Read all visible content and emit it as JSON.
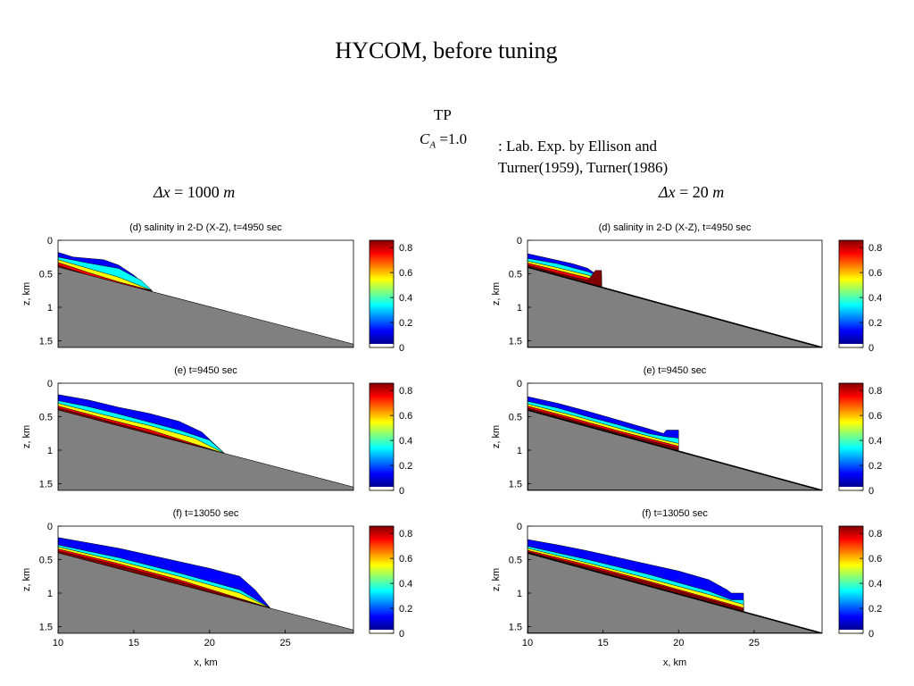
{
  "slide": {
    "title": "HYCOM, before tuning",
    "tp_label": "TP",
    "ca_symbol": "C",
    "ca_subscript": "A",
    "ca_value": " =1.0",
    "lab_reference": ": Lab. Exp. by Ellison and\nTurner(1959), Turner(1986)",
    "dx_left_symbol": "Δx",
    "dx_left_value": " = 1000 ",
    "dx_left_unit": "m",
    "dx_right_symbol": "Δx",
    "dx_right_value": " = 20 ",
    "dx_right_unit": "m"
  },
  "colors": {
    "bottom_fill": "#808080",
    "colormap": [
      "#00008f",
      "#0000ff",
      "#0080ff",
      "#00ffff",
      "#80ff80",
      "#ffff00",
      "#ff8000",
      "#ff0000",
      "#800000"
    ]
  },
  "chart_data": [
    {
      "type": "area",
      "title": "(d) salinity in 2-D (X-Z), t=4950 sec",
      "ylabel": "z, km",
      "xlabel": "",
      "xlim": [
        10,
        29.5
      ],
      "ylim": [
        1.6,
        0
      ],
      "xticks": [],
      "yticks": [
        0,
        0.5,
        1,
        1.5
      ],
      "bottom": {
        "x": [
          10,
          29.5
        ],
        "z": [
          0.4,
          1.55
        ]
      },
      "front_x": 16.2,
      "layers": [
        {
          "color": "#0000ff",
          "x": [
            10,
            11,
            12,
            13,
            14,
            15,
            16.2
          ],
          "z": [
            0.18,
            0.25,
            0.27,
            0.29,
            0.37,
            0.52,
            0.75
          ]
        },
        {
          "color": "#00ffff",
          "x": [
            10,
            12,
            14,
            15.5,
            16.2
          ],
          "z": [
            0.25,
            0.34,
            0.42,
            0.6,
            0.75
          ]
        },
        {
          "color": "#ffff00",
          "x": [
            10,
            12,
            14,
            16.2
          ],
          "z": [
            0.29,
            0.42,
            0.55,
            0.75
          ]
        },
        {
          "color": "#ff0000",
          "x": [
            10,
            12,
            14,
            16.2
          ],
          "z": [
            0.33,
            0.48,
            0.62,
            0.75
          ]
        },
        {
          "color": "#800000",
          "x": [
            10,
            12,
            14,
            16.2
          ],
          "z": [
            0.37,
            0.52,
            0.66,
            0.75
          ]
        }
      ],
      "colorbar": {
        "ticks": [
          "0.8",
          "0.6",
          "0.4",
          "0.2",
          "0"
        ]
      }
    },
    {
      "type": "area",
      "title": "(e) t=9450 sec",
      "ylabel": "z, km",
      "xlabel": "",
      "xlim": [
        10,
        29.5
      ],
      "ylim": [
        1.6,
        0
      ],
      "xticks": [],
      "yticks": [
        0,
        0.5,
        1,
        1.5
      ],
      "bottom": {
        "x": [
          10,
          29.5
        ],
        "z": [
          0.4,
          1.55
        ]
      },
      "front_x": 21.0,
      "layers": [
        {
          "color": "#0000ff",
          "x": [
            10,
            12,
            14,
            16,
            18,
            19.5,
            21.0
          ],
          "z": [
            0.17,
            0.25,
            0.36,
            0.45,
            0.57,
            0.73,
            1.05
          ]
        },
        {
          "color": "#00ffff",
          "x": [
            10,
            12,
            14,
            16,
            18,
            20,
            21.0
          ],
          "z": [
            0.26,
            0.35,
            0.46,
            0.58,
            0.7,
            0.85,
            1.05
          ]
        },
        {
          "color": "#ffff00",
          "x": [
            10,
            13,
            16,
            19,
            21.0
          ],
          "z": [
            0.3,
            0.47,
            0.63,
            0.82,
            1.05
          ]
        },
        {
          "color": "#ff0000",
          "x": [
            10,
            13,
            16,
            21.0
          ],
          "z": [
            0.34,
            0.52,
            0.69,
            1.05
          ]
        },
        {
          "color": "#800000",
          "x": [
            10,
            13,
            16,
            21.0
          ],
          "z": [
            0.37,
            0.55,
            0.73,
            1.05
          ]
        }
      ],
      "colorbar": {
        "ticks": [
          "0.8",
          "0.6",
          "0.4",
          "0.2",
          "0"
        ]
      }
    },
    {
      "type": "area",
      "title": "(f) t=13050 sec",
      "ylabel": "z, km",
      "xlabel": "x, km",
      "xlim": [
        10,
        29.5
      ],
      "ylim": [
        1.6,
        0
      ],
      "xticks": [
        10,
        15,
        20,
        25
      ],
      "yticks": [
        0,
        0.5,
        1,
        1.5
      ],
      "bottom": {
        "x": [
          10,
          29.5
        ],
        "z": [
          0.4,
          1.55
        ]
      },
      "front_x": 24.0,
      "layers": [
        {
          "color": "#0000ff",
          "x": [
            10,
            12,
            14,
            16,
            18,
            20,
            22,
            23,
            24.0
          ],
          "z": [
            0.17,
            0.25,
            0.33,
            0.43,
            0.53,
            0.63,
            0.75,
            0.95,
            1.22
          ]
        },
        {
          "color": "#00ffff",
          "x": [
            10,
            14,
            18,
            22,
            24.0
          ],
          "z": [
            0.28,
            0.47,
            0.7,
            0.95,
            1.22
          ]
        },
        {
          "color": "#ffff00",
          "x": [
            10,
            14,
            18,
            22,
            24.0
          ],
          "z": [
            0.31,
            0.52,
            0.75,
            1.0,
            1.22
          ]
        },
        {
          "color": "#ff0000",
          "x": [
            10,
            14,
            18,
            24.0
          ],
          "z": [
            0.34,
            0.56,
            0.8,
            1.22
          ]
        },
        {
          "color": "#800000",
          "x": [
            10,
            14,
            18,
            24.0
          ],
          "z": [
            0.37,
            0.59,
            0.83,
            1.22
          ]
        }
      ],
      "colorbar": {
        "ticks": [
          "0.8",
          "0.6",
          "0.4",
          "0.2",
          "0"
        ]
      }
    },
    {
      "type": "area",
      "title": "(d) salinity in 2-D (X-Z), t=4950 sec",
      "ylabel": "z, km",
      "xlabel": "",
      "xlim": [
        10,
        29.5
      ],
      "ylim": [
        1.6,
        0
      ],
      "xticks": [],
      "yticks": [
        0,
        0.5,
        1,
        1.5
      ],
      "bottom": {
        "x": [
          10,
          29.5
        ],
        "z": [
          0.4,
          1.6
        ]
      },
      "front_x": 14.9,
      "layers": [
        {
          "color": "#0000ff",
          "x": [
            10,
            11,
            12,
            13,
            14,
            14.5,
            14.9
          ],
          "z": [
            0.2,
            0.25,
            0.3,
            0.35,
            0.42,
            0.5,
            0.5
          ]
        },
        {
          "color": "#00ffff",
          "x": [
            10,
            12,
            14,
            14.9
          ],
          "z": [
            0.27,
            0.35,
            0.47,
            0.55
          ]
        },
        {
          "color": "#ffff00",
          "x": [
            10,
            12,
            14,
            14.9
          ],
          "z": [
            0.31,
            0.41,
            0.52,
            0.6
          ]
        },
        {
          "color": "#ff0000",
          "x": [
            10,
            12,
            14,
            14.9
          ],
          "z": [
            0.34,
            0.45,
            0.56,
            0.64
          ]
        },
        {
          "color": "#800000",
          "x": [
            10,
            12,
            14,
            14.5,
            14.9
          ],
          "z": [
            0.37,
            0.49,
            0.6,
            0.45,
            0.45
          ]
        }
      ],
      "colorbar": {
        "ticks": [
          "0.8",
          "0.6",
          "0.4",
          "0.2",
          "0"
        ]
      }
    },
    {
      "type": "area",
      "title": "(e) t=9450 sec",
      "ylabel": "z, km",
      "xlabel": "",
      "xlim": [
        10,
        29.5
      ],
      "ylim": [
        1.6,
        0
      ],
      "xticks": [],
      "yticks": [
        0,
        0.5,
        1,
        1.5
      ],
      "bottom": {
        "x": [
          10,
          29.5
        ],
        "z": [
          0.4,
          1.6
        ]
      },
      "front_x": 20.0,
      "layers": [
        {
          "color": "#0000ff",
          "x": [
            10,
            12,
            14,
            16,
            18,
            19.0,
            19.2,
            20.0
          ],
          "z": [
            0.2,
            0.3,
            0.42,
            0.55,
            0.68,
            0.75,
            0.7,
            0.7
          ]
        },
        {
          "color": "#00ffff",
          "x": [
            10,
            12,
            14,
            16,
            18,
            19.2,
            20.0
          ],
          "z": [
            0.27,
            0.37,
            0.5,
            0.62,
            0.75,
            0.8,
            0.82
          ]
        },
        {
          "color": "#ffff00",
          "x": [
            10,
            13,
            16,
            19.2,
            20.0
          ],
          "z": [
            0.31,
            0.48,
            0.67,
            0.86,
            0.9
          ]
        },
        {
          "color": "#ff0000",
          "x": [
            10,
            13,
            16,
            20.0
          ],
          "z": [
            0.34,
            0.52,
            0.71,
            0.94
          ]
        },
        {
          "color": "#800000",
          "x": [
            10,
            13,
            16,
            20.0
          ],
          "z": [
            0.37,
            0.55,
            0.74,
            0.97
          ]
        }
      ],
      "colorbar": {
        "ticks": [
          "0.8",
          "0.6",
          "0.4",
          "0.2",
          "0"
        ]
      }
    },
    {
      "type": "area",
      "title": "(f) t=13050 sec",
      "ylabel": "z, km",
      "xlabel": "x, km",
      "xlim": [
        10,
        29.5
      ],
      "ylim": [
        1.6,
        0
      ],
      "xticks": [
        10,
        15,
        20,
        25
      ],
      "yticks": [
        0,
        0.5,
        1,
        1.5
      ],
      "bottom": {
        "x": [
          10,
          29.5
        ],
        "z": [
          0.4,
          1.6
        ]
      },
      "front_x": 24.3,
      "layers": [
        {
          "color": "#0000ff",
          "x": [
            10,
            12,
            14,
            16,
            18,
            20,
            22,
            23.2,
            23.5,
            24.3
          ],
          "z": [
            0.2,
            0.28,
            0.37,
            0.47,
            0.57,
            0.67,
            0.8,
            0.95,
            1.0,
            1.0
          ]
        },
        {
          "color": "#00ffff",
          "x": [
            10,
            14,
            18,
            22,
            23.5,
            24.3
          ],
          "z": [
            0.3,
            0.5,
            0.72,
            0.97,
            1.1,
            1.1
          ]
        },
        {
          "color": "#ffff00",
          "x": [
            10,
            14,
            18,
            22,
            24.3
          ],
          "z": [
            0.33,
            0.55,
            0.78,
            1.02,
            1.17
          ]
        },
        {
          "color": "#ff0000",
          "x": [
            10,
            14,
            18,
            24.3
          ],
          "z": [
            0.36,
            0.58,
            0.82,
            1.22
          ]
        },
        {
          "color": "#800000",
          "x": [
            10,
            14,
            18,
            24.3
          ],
          "z": [
            0.38,
            0.61,
            0.84,
            1.24
          ]
        }
      ],
      "colorbar": {
        "ticks": [
          "0.8",
          "0.6",
          "0.4",
          "0.2",
          "0"
        ]
      }
    }
  ]
}
